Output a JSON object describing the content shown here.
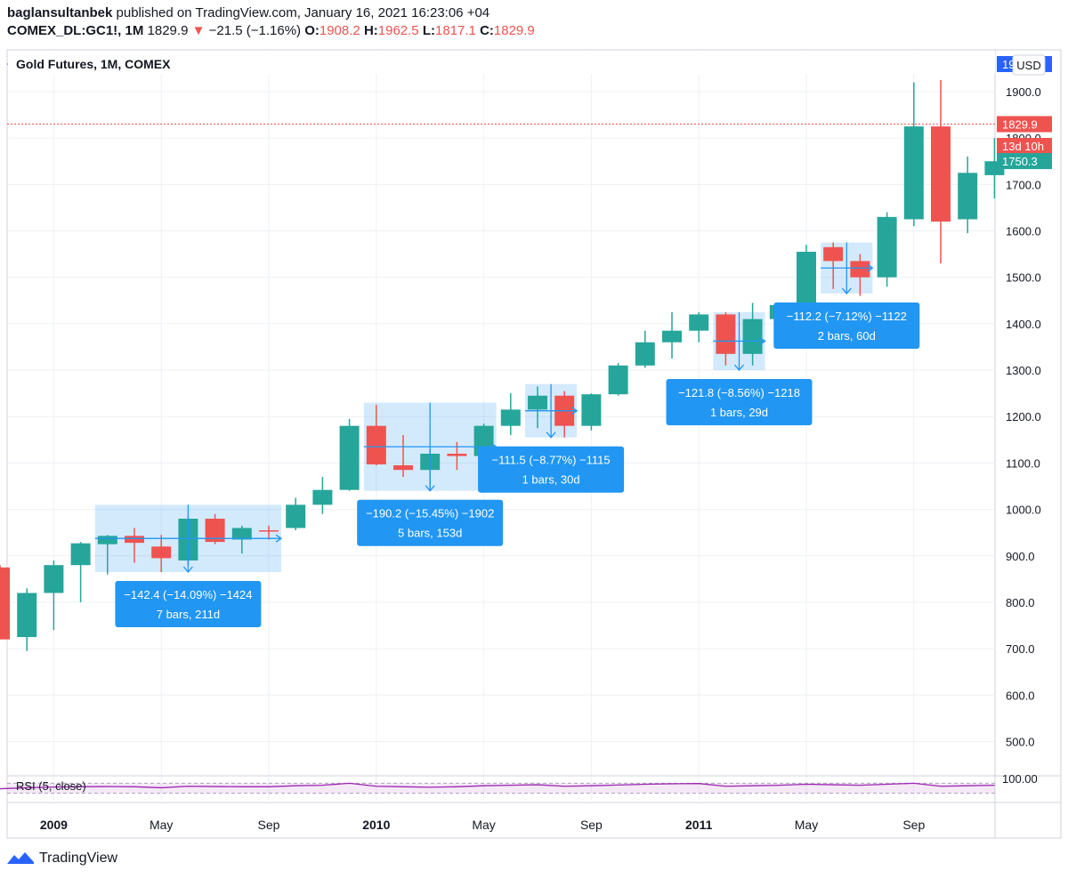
{
  "header": {
    "author": "baglansultanbek",
    "published_text": " published on TradingView.com, January 16, 2021 16:23:06 +04",
    "symbol": "COMEX_DL:GC1!, 1M",
    "price": "1829.9",
    "change": "−21.5 (−1.16%)",
    "open_label": "O:",
    "open": "1908.2",
    "high_label": "H:",
    "high": "1962.5",
    "low_label": "L:",
    "low": "1817.1",
    "close_label": "C:",
    "close": "1829.9"
  },
  "footer": {
    "brand": "TradingView"
  },
  "colors": {
    "up": "#26a69a",
    "down": "#ef5350",
    "accent": "#2962ff",
    "measure": "#2196f3",
    "rsi": "#9c27b0"
  },
  "chart_data": {
    "type": "candlestick",
    "title": "Gold Futures, 1M, COMEX",
    "currency": "USD",
    "ylim": [
      430,
      1990
    ],
    "yticks": [
      500,
      600,
      700,
      800,
      900,
      1000,
      1100,
      1200,
      1300,
      1400,
      1500,
      1600,
      1700,
      1800,
      1900
    ],
    "ytick_labels": [
      "500.0",
      "600.0",
      "700.0",
      "800.0",
      "900.0",
      "1000.0",
      "1100.0",
      "1200.0",
      "1300.0",
      "1400.0",
      "1500.0",
      "1600.0",
      "1700.0",
      "1800.0",
      "1900.0"
    ],
    "xaxis_labels": [
      {
        "text": "2009",
        "i": 2,
        "bold": true
      },
      {
        "text": "May",
        "i": 6,
        "bold": false
      },
      {
        "text": "Sep",
        "i": 10,
        "bold": false
      },
      {
        "text": "2010",
        "i": 14,
        "bold": true
      },
      {
        "text": "May",
        "i": 18,
        "bold": false
      },
      {
        "text": "Sep",
        "i": 22,
        "bold": false
      },
      {
        "text": "2011",
        "i": 26,
        "bold": true
      },
      {
        "text": "May",
        "i": 30,
        "bold": false
      },
      {
        "text": "Sep",
        "i": 34,
        "bold": false
      }
    ],
    "candles": [
      {
        "o": 875,
        "h": 880,
        "l": 720,
        "c": 720
      },
      {
        "o": 725,
        "h": 830,
        "l": 695,
        "c": 820
      },
      {
        "o": 820,
        "h": 890,
        "l": 740,
        "c": 880
      },
      {
        "o": 880,
        "h": 930,
        "l": 800,
        "c": 927
      },
      {
        "o": 925,
        "h": 945,
        "l": 860,
        "c": 943
      },
      {
        "o": 943,
        "h": 960,
        "l": 885,
        "c": 928
      },
      {
        "o": 920,
        "h": 945,
        "l": 865,
        "c": 895
      },
      {
        "o": 890,
        "h": 985,
        "l": 880,
        "c": 980
      },
      {
        "o": 980,
        "h": 990,
        "l": 925,
        "c": 930
      },
      {
        "o": 935,
        "h": 965,
        "l": 905,
        "c": 960
      },
      {
        "o": 955,
        "h": 965,
        "l": 935,
        "c": 953
      },
      {
        "o": 960,
        "h": 1025,
        "l": 955,
        "c": 1010
      },
      {
        "o": 1010,
        "h": 1070,
        "l": 990,
        "c": 1042
      },
      {
        "o": 1042,
        "h": 1195,
        "l": 1040,
        "c": 1180
      },
      {
        "o": 1180,
        "h": 1225,
        "l": 1095,
        "c": 1097
      },
      {
        "o": 1095,
        "h": 1160,
        "l": 1070,
        "c": 1085
      },
      {
        "o": 1085,
        "h": 1130,
        "l": 1045,
        "c": 1120
      },
      {
        "o": 1120,
        "h": 1145,
        "l": 1085,
        "c": 1115
      },
      {
        "o": 1115,
        "h": 1185,
        "l": 1105,
        "c": 1180
      },
      {
        "o": 1180,
        "h": 1250,
        "l": 1160,
        "c": 1215
      },
      {
        "o": 1215,
        "h": 1265,
        "l": 1175,
        "c": 1245
      },
      {
        "o": 1245,
        "h": 1255,
        "l": 1155,
        "c": 1180
      },
      {
        "o": 1180,
        "h": 1250,
        "l": 1170,
        "c": 1248
      },
      {
        "o": 1248,
        "h": 1315,
        "l": 1245,
        "c": 1310
      },
      {
        "o": 1310,
        "h": 1385,
        "l": 1305,
        "c": 1360
      },
      {
        "o": 1360,
        "h": 1425,
        "l": 1325,
        "c": 1385
      },
      {
        "o": 1385,
        "h": 1425,
        "l": 1360,
        "c": 1420
      },
      {
        "o": 1420,
        "h": 1425,
        "l": 1310,
        "c": 1335
      },
      {
        "o": 1335,
        "h": 1445,
        "l": 1310,
        "c": 1410
      },
      {
        "o": 1410,
        "h": 1440,
        "l": 1375,
        "c": 1440
      },
      {
        "o": 1440,
        "h": 1570,
        "l": 1420,
        "c": 1555
      },
      {
        "o": 1565,
        "h": 1575,
        "l": 1475,
        "c": 1535
      },
      {
        "o": 1535,
        "h": 1550,
        "l": 1460,
        "c": 1500
      },
      {
        "o": 1500,
        "h": 1640,
        "l": 1480,
        "c": 1630
      },
      {
        "o": 1625,
        "h": 1920,
        "l": 1610,
        "c": 1825
      },
      {
        "o": 1825,
        "h": 1925,
        "l": 1530,
        "c": 1620
      },
      {
        "o": 1625,
        "h": 1760,
        "l": 1595,
        "c": 1725
      },
      {
        "o": 1720,
        "h": 1800,
        "l": 1670,
        "c": 1750
      }
    ],
    "price_lines": [
      {
        "label": "1959.3",
        "value": 1959.3,
        "color": "#2962ff",
        "style": "solid"
      },
      {
        "label": "1829.9",
        "value": 1829.9,
        "color": "#ef5350",
        "style": "dotted"
      }
    ],
    "price_badges": [
      {
        "text": "1829.9",
        "value": 1829.9,
        "color": "#ef5350"
      },
      {
        "text": "13d 10h",
        "value": 1783,
        "color": "#ef5350"
      },
      {
        "text": "1750.3",
        "value": 1750.3,
        "color": "#26a69a"
      }
    ],
    "measurements": [
      {
        "from_i": 4,
        "to_i": 10,
        "high": 1010,
        "low": 865,
        "line1": "−142.4 (−14.09%) −1424",
        "line2": "7 bars, 211d"
      },
      {
        "from_i": 14,
        "to_i": 18,
        "high": 1230,
        "low": 1040,
        "line1": "−190.2 (−15.45%) −1902",
        "line2": "5 bars, 153d"
      },
      {
        "from_i": 20,
        "to_i": 21,
        "high": 1270,
        "low": 1155,
        "line1": "−111.5 (−8.77%) −1115",
        "line2": "1 bars, 30d"
      },
      {
        "from_i": 27,
        "to_i": 28,
        "high": 1425,
        "low": 1300,
        "line1": "−121.8 (−8.56%) −1218",
        "line2": "1 bars, 29d"
      },
      {
        "from_i": 31,
        "to_i": 32,
        "high": 1575,
        "low": 1465,
        "line1": "−112.2 (−7.12%) −1122",
        "line2": "2 bars, 60d"
      }
    ],
    "rsi": {
      "label": "RSI (5, close)",
      "tick_label": "100.00",
      "values": [
        48,
        52,
        55,
        56,
        57,
        56,
        52,
        58,
        57,
        56,
        56,
        60,
        62,
        70,
        58,
        56,
        54,
        56,
        60,
        62,
        64,
        58,
        60,
        63,
        66,
        68,
        69,
        58,
        60,
        62,
        66,
        64,
        62,
        66,
        70,
        58,
        60,
        62
      ]
    }
  }
}
